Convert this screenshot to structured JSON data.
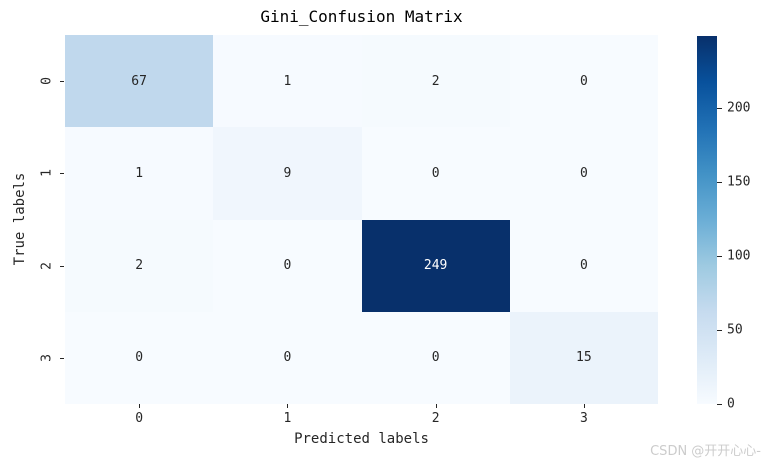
{
  "watermark": "CSDN @开开心心-",
  "chart_data": {
    "type": "heatmap",
    "title": "Gini_Confusion Matrix",
    "xlabel": "Predicted labels",
    "ylabel": "True labels",
    "x_tick_labels": [
      "0",
      "1",
      "2",
      "3"
    ],
    "y_tick_labels": [
      "0",
      "1",
      "2",
      "3"
    ],
    "matrix": [
      [
        67,
        1,
        2,
        0
      ],
      [
        1,
        9,
        0,
        0
      ],
      [
        2,
        0,
        249,
        0
      ],
      [
        0,
        0,
        0,
        15
      ]
    ],
    "vmin": 0,
    "vmax": 249,
    "colormap": "Blues",
    "colorbar_ticks": [
      0,
      50,
      100,
      150,
      200
    ],
    "colorbar_position": "right",
    "grid": false,
    "annotations": "cell values printed in each cell"
  },
  "colors": {
    "background": "#ffffff",
    "blues_anchors": [
      "#f7fbff",
      "#deebf7",
      "#c6dbef",
      "#9ecae1",
      "#6baed6",
      "#4292c6",
      "#2171b5",
      "#08519c",
      "#08306b"
    ],
    "cell_text_dark": "#262626",
    "cell_text_light": "#ffffff",
    "axis_text": "#262626",
    "watermark": "#cccccc"
  }
}
